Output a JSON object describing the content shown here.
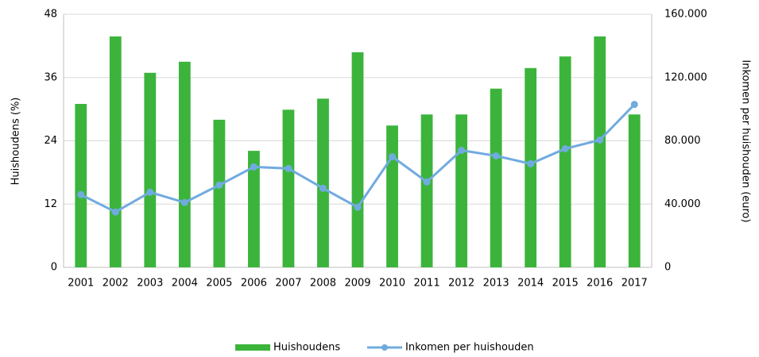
{
  "chart_data": {
    "type": "bar",
    "categories": [
      "2001",
      "2002",
      "2003",
      "2004",
      "2005",
      "2006",
      "2007",
      "2008",
      "2009",
      "2010",
      "2011",
      "2012",
      "2013",
      "2014",
      "2015",
      "2016",
      "2017"
    ],
    "ylabel": "Huishoudens (%)",
    "y2label": "Inkomen per huishouden (euro)",
    "ylim": [
      0,
      48
    ],
    "yticks": [
      0,
      12,
      24,
      36,
      48
    ],
    "y2lim": [
      0,
      160000
    ],
    "y2ticks": [
      0,
      {
        "value": 40000,
        "label": "40.000"
      },
      {
        "value": 80000,
        "label": "80.000"
      },
      {
        "value": 120000,
        "label": "120.000"
      },
      {
        "value": 160000,
        "label": "160.000"
      }
    ],
    "grid": true,
    "legend": "bottom",
    "series": [
      {
        "name": "Huishoudens",
        "type": "bar",
        "color": "#3cb43c",
        "values": [
          31,
          43.8,
          36.9,
          39,
          28,
          22.1,
          29.9,
          32,
          40.8,
          26.9,
          29,
          29,
          33.9,
          37.8,
          40,
          43.8,
          29
        ]
      },
      {
        "name": "Inkomen per huishouden",
        "type": "line",
        "axis": "y2",
        "color": "#70abdf",
        "values": [
          46000,
          35000,
          47500,
          41000,
          52000,
          63500,
          62500,
          50000,
          38000,
          70000,
          54000,
          74000,
          70500,
          65500,
          75000,
          80500,
          103000
        ]
      }
    ]
  }
}
